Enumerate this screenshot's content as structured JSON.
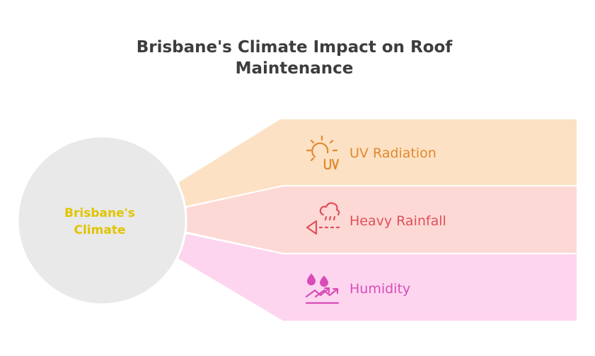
{
  "diagram": {
    "title_line1": "Brisbane's Climate Impact on Roof",
    "title_line2": "Maintenance",
    "center": {
      "line1": "Brisbane's",
      "line2": "Climate",
      "text_color": "#e0c400",
      "fill_color": "#e9e9e9"
    },
    "factors": [
      {
        "label": "UV Radiation",
        "icon": "sun-uv-icon",
        "fill_color": "#fde1c4",
        "accent_color": "#e08a2e"
      },
      {
        "label": "Heavy Rainfall",
        "icon": "rain-cloud-icon",
        "fill_color": "#fdd9d6",
        "accent_color": "#e0505a"
      },
      {
        "label": "Humidity",
        "icon": "droplets-trend-icon",
        "fill_color": "#fdd5ef",
        "accent_color": "#d84db8"
      }
    ]
  }
}
